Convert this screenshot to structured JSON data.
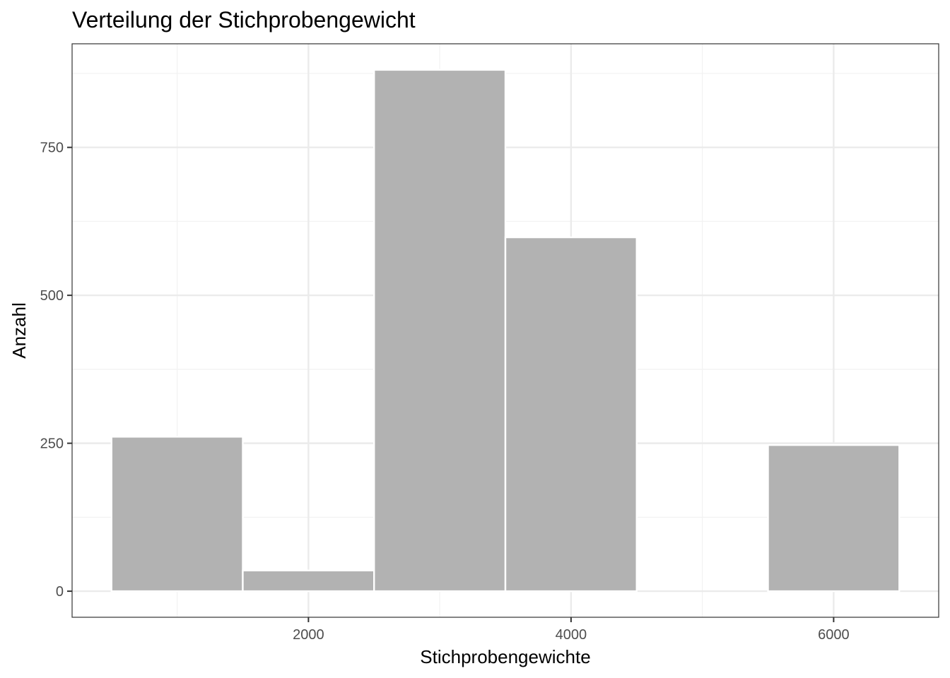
{
  "chart_data": {
    "type": "bar",
    "title": "Verteilung der Stichprobengewicht",
    "xlabel": "Stichprobengewichte",
    "ylabel": "Anzahl",
    "bin_width": 1000,
    "x": [
      1000,
      2000,
      3000,
      4000,
      5000,
      6000
    ],
    "values": [
      261,
      35,
      881,
      598,
      0,
      247
    ],
    "xlim": [
      500,
      6500
    ],
    "ylim": [
      0,
      881
    ],
    "x_ticks": [
      2000,
      4000,
      6000
    ],
    "y_ticks": [
      0,
      250,
      500,
      750
    ],
    "grid": true,
    "legend": "none",
    "colors": {
      "bar_fill": "#b2b2b2",
      "bar_stroke": "#ffffff",
      "grid_major": "#ebebeb",
      "grid_minor": "#f2f2f2",
      "panel_border": "#333333"
    }
  }
}
